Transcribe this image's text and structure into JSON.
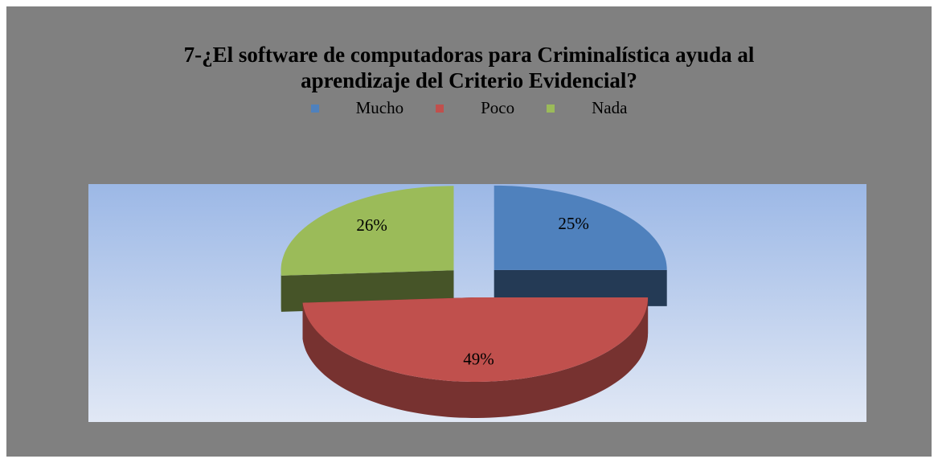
{
  "chart_data": {
    "type": "pie",
    "title": "7-¿El software de computadoras para Criminalística ayuda al aprendizaje del Criterio Evidencial?",
    "categories": [
      "Mucho",
      "Poco",
      "Nada"
    ],
    "values": [
      25,
      49,
      26
    ],
    "value_labels": [
      "25%",
      "49%",
      "26%"
    ],
    "colors": [
      "#4f81bd",
      "#c0504d",
      "#9bbb59"
    ],
    "legend": "top"
  }
}
